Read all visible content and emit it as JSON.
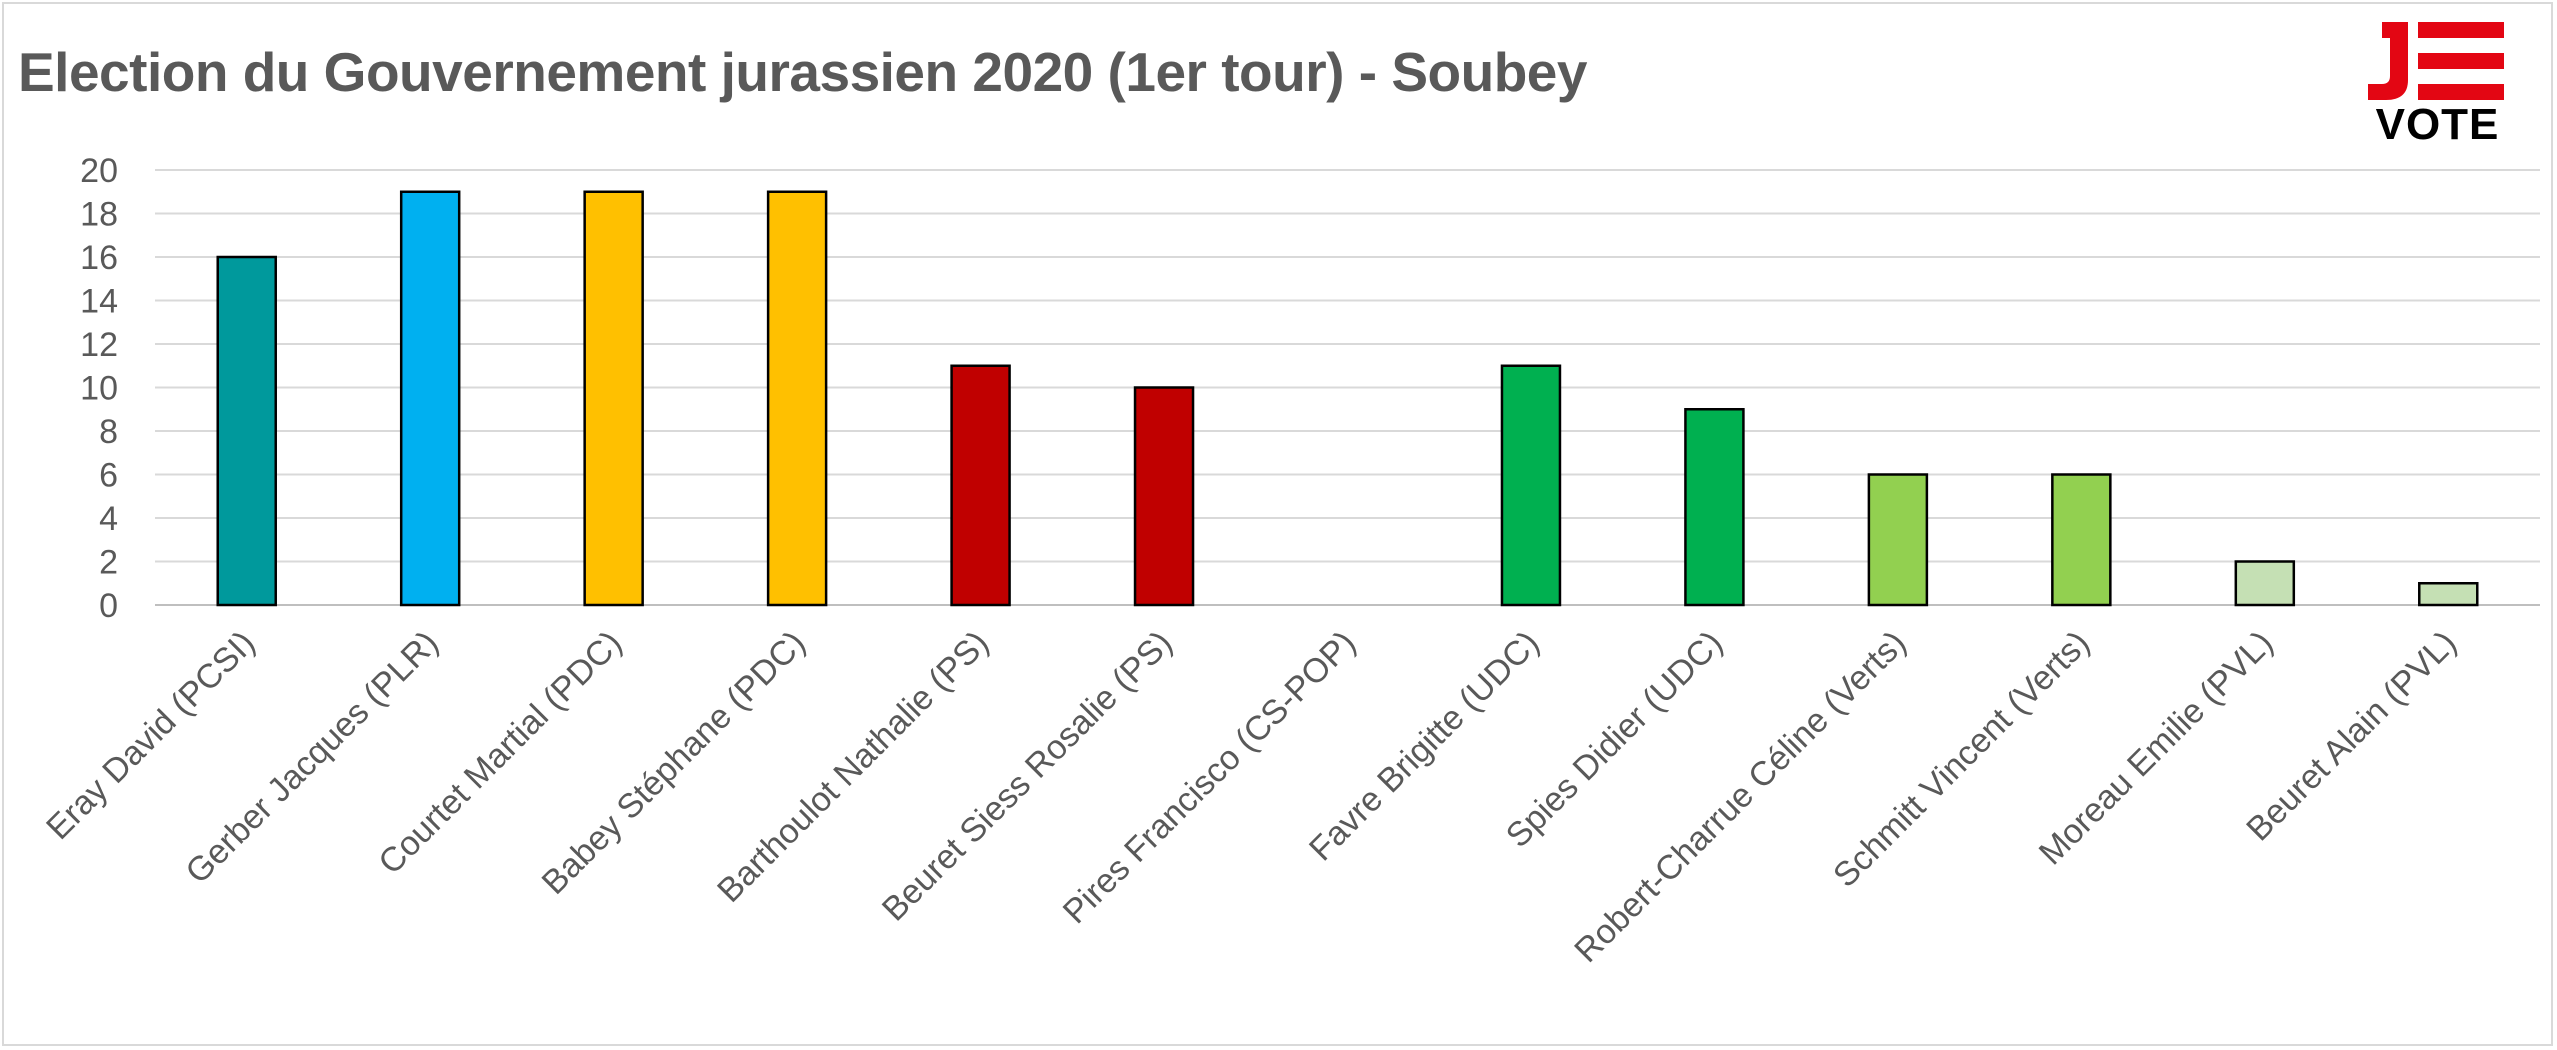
{
  "chart_data": {
    "type": "bar",
    "title": "Election du Gouvernement jurassien 2020 (1er tour) - Soubey",
    "xlabel": "",
    "ylabel": "",
    "ylim": [
      0,
      20
    ],
    "yticks": [
      "0",
      "2",
      "4",
      "6",
      "8",
      "10",
      "12",
      "14",
      "16",
      "18",
      "20"
    ],
    "grid": true,
    "legend": "none",
    "categories": [
      "Eray David (PCSI)",
      "Gerber Jacques (PLR)",
      "Courtet Martial (PDC)",
      "Babey Stéphane (PDC)",
      "Barthoulot Nathalie (PS)",
      "Beuret Siess Rosalie (PS)",
      "Pires Francisco (CS-POP)",
      "Favre Brigitte (UDC)",
      "Spies Didier (UDC)",
      "Robert-Charrue Céline (Verts)",
      "Schmitt Vincent (Verts)",
      "Moreau Emilie (PVL)",
      "Beuret Alain (PVL)"
    ],
    "values": [
      16,
      19,
      19,
      19,
      11,
      10,
      0,
      11,
      9,
      6,
      6,
      2,
      1
    ],
    "colors": [
      "#00999C",
      "#00B0F0",
      "#FFC000",
      "#FFC000",
      "#C00000",
      "#C00000",
      "#C00000",
      "#00B050",
      "#00B050",
      "#92D050",
      "#92D050",
      "#C5E0B4",
      "#C5E0B4"
    ]
  },
  "logo": {
    "word": "VOTE",
    "red": "#E30613",
    "black": "#000000"
  }
}
